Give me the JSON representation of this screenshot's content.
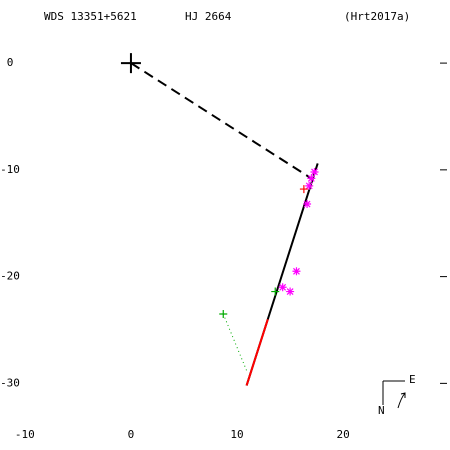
{
  "chart_data": {
    "type": "scatter",
    "title": "WDS 13351+5621",
    "subtitle": "HJ 2664",
    "reference": "(Hrt2017a)",
    "compass": {
      "north": "N",
      "east": "E"
    },
    "xlim": [
      -11.4,
      29.6
    ],
    "ylim": [
      -33.9,
      3.1
    ],
    "xticks": [
      -10,
      0,
      10,
      20
    ],
    "yticks": [
      0,
      -10,
      -20,
      -30
    ],
    "lines": [
      {
        "color": "#000000",
        "dash": true,
        "x": [
          0,
          17.0
        ],
        "values": [
          0,
          -10.8
        ]
      },
      {
        "color": "#000000",
        "dash": false,
        "x": [
          17.6,
          10.9
        ],
        "values": [
          -9.4,
          -30.2
        ]
      },
      {
        "color": "#ff0000",
        "dash": false,
        "x": [
          12.9,
          10.9
        ],
        "values": [
          -24.0,
          -30.2
        ]
      },
      {
        "color": "#00aa00",
        "dotted": true,
        "x": [
          8.7,
          10.9
        ],
        "values": [
          -23.5,
          -28.8
        ]
      }
    ],
    "series": [
      {
        "color": "#000000",
        "marker": "bigplus",
        "x": [
          0
        ],
        "values": [
          0
        ]
      },
      {
        "color": "#ff00ff",
        "marker": "asterisk",
        "x": [
          17.3,
          17.0,
          16.8,
          16.6,
          15.6,
          14.3,
          15.0
        ],
        "values": [
          -10.2,
          -10.8,
          -11.5,
          -13.2,
          -19.5,
          -21.0,
          -21.4
        ]
      },
      {
        "color": "#ff0000",
        "marker": "plus",
        "x": [
          16.3
        ],
        "values": [
          -11.8
        ]
      },
      {
        "color": "#00aa00",
        "marker": "plus",
        "x": [
          8.7,
          13.6
        ],
        "values": [
          -23.5,
          -21.4
        ]
      }
    ]
  }
}
